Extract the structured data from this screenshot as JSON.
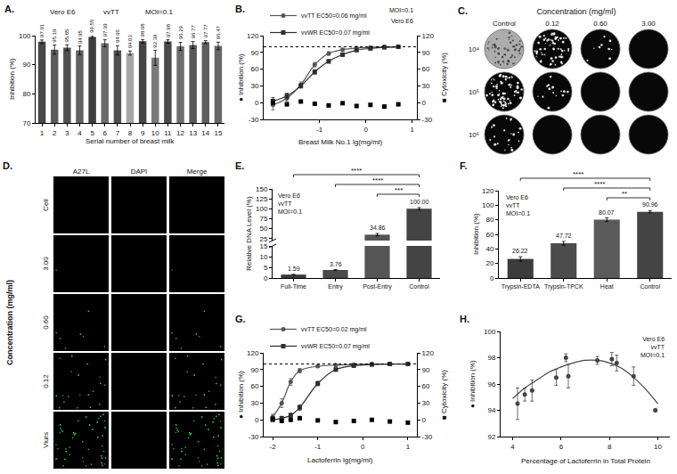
{
  "chart_data": [
    {
      "panel": "A.",
      "type": "bar",
      "annotations": [
        "Vero E6",
        "vvTT",
        "MOI=0.1"
      ],
      "categories": [
        1,
        2,
        3,
        4,
        5,
        6,
        7,
        8,
        9,
        10,
        11,
        12,
        13,
        14,
        15
      ],
      "values": [
        97.91,
        95.19,
        95.85,
        94.95,
        99.55,
        97.39,
        94.96,
        94.03,
        98.08,
        92.39,
        97.98,
        96.29,
        96.77,
        97.77,
        96.47
      ],
      "errors": [
        0.6,
        1.6,
        1.0,
        1.5,
        0.4,
        1.2,
        1.6,
        0.7,
        0.6,
        2.6,
        0.6,
        1.4,
        1.2,
        0.5,
        1.3
      ],
      "colors": [
        "#474747",
        "#5c5c5c",
        "#505050",
        "#626262",
        "#3d3d3d",
        "#6b6b6b",
        "#4f4f4f",
        "#a6a6a6",
        "#454545",
        "#7a7a7a",
        "#4a4a4a",
        "#6e6e6e",
        "#575757",
        "#5f5f5f",
        "#666666"
      ],
      "ylim": [
        70,
        100
      ],
      "yticks": [
        70,
        80,
        90,
        100
      ],
      "y_label": "Inhibition (%)",
      "x_label": "Serial number of breast milk",
      "data_labels": true
    },
    {
      "panel": "B.",
      "type": "line",
      "annotations": [
        "MOI=0.1",
        "Vero E6"
      ],
      "x_label": "Breast Milk No.1 lg(mg/ml)",
      "y_label": "● Inhibition (%)",
      "y2_label": "■ Cytoxicity (%)",
      "xlim": [
        -2.2,
        1.1
      ],
      "xticks": [
        -1,
        0,
        1
      ],
      "ylim": [
        -30,
        120
      ],
      "yticks": [
        -30,
        0,
        30,
        60,
        90,
        120
      ],
      "y2lim": [
        -30,
        120
      ],
      "y2ticks": [
        -30,
        0,
        30,
        60,
        90,
        120
      ],
      "reference_line": 100,
      "legend": "top",
      "series": [
        {
          "name": "vvTT EC50=0.06 mg/ml",
          "color": "#555555",
          "marker": "circle",
          "line_style": "spline",
          "x": [
            -2.0,
            -1.7,
            -1.4,
            -1.1,
            -0.8,
            -0.5,
            -0.2,
            0.1,
            0.4,
            0.7
          ],
          "values": [
            -4,
            8,
            32,
            68,
            88,
            95,
            98,
            99,
            100,
            100
          ],
          "errors": [
            9,
            6,
            5,
            4,
            3,
            2,
            1,
            1,
            1,
            1
          ]
        },
        {
          "name": "vvWR EC50=0.07 mg/ml",
          "color": "#2e2e2e",
          "marker": "square",
          "line_style": "spline",
          "x": [
            -2.0,
            -1.7,
            -1.4,
            -1.1,
            -0.8,
            -0.5,
            -0.2,
            0.1,
            0.4,
            0.7
          ],
          "values": [
            3,
            12,
            30,
            55,
            74,
            86,
            94,
            97,
            99,
            100
          ],
          "errors": [
            6,
            5,
            4,
            4,
            3,
            3,
            2,
            1,
            1,
            1
          ]
        },
        {
          "axis": "y2",
          "color": "#000000",
          "marker": "square",
          "line_style": "none",
          "x": [
            -2.0,
            -1.7,
            -1.4,
            -1.1,
            -0.8,
            -0.5,
            -0.2,
            0.1,
            0.4,
            0.7
          ],
          "values": [
            0,
            -3,
            2,
            -2,
            -5,
            -1,
            -6,
            -4,
            -7,
            -3
          ]
        }
      ]
    },
    {
      "panel": "E.",
      "type": "bar",
      "annotations": [
        "Vero E6",
        "vvTT",
        "MOI=0.1"
      ],
      "categories": [
        "Full-Time",
        "Entry",
        "Post-Entry",
        "Control"
      ],
      "values": [
        1.59,
        3.76,
        34.86,
        100
      ],
      "value_labels": [
        "1.59",
        "3.76",
        "34.86",
        "100.00"
      ],
      "errors": [
        0.1,
        0.15,
        3,
        3
      ],
      "colors": [
        "#3a3a3a",
        "#4a4a4a",
        "#555555",
        "#444444"
      ],
      "ylim": [
        [
          0,
          15
        ],
        [
          20,
          150
        ]
      ],
      "yticks": [
        [
          0,
          5,
          10,
          15
        ],
        [
          25,
          50,
          75,
          100,
          125,
          150
        ]
      ],
      "y_label": "Relative DNA Level (%)",
      "data_labels": true,
      "significance": [
        {
          "from": "Full-Time",
          "to": "Control",
          "label": "****"
        },
        {
          "from": "Entry",
          "to": "Control",
          "label": "****"
        },
        {
          "from": "Post-Entry",
          "to": "Control",
          "label": "***"
        }
      ]
    },
    {
      "panel": "F.",
      "type": "bar",
      "annotations": [
        "Vero E6",
        "vvTT",
        "MOI=0.1"
      ],
      "categories": [
        "Trypsin-EDTA",
        "Trypsin-TPCK",
        "Heat",
        "Control"
      ],
      "values": [
        26.22,
        47.72,
        80.07,
        90.96
      ],
      "errors": [
        3,
        2.5,
        2.5,
        1.5
      ],
      "colors": [
        "#3c3c3c",
        "#4c4c4c",
        "#5a5a5a",
        "#444444"
      ],
      "ylim": [
        0,
        120
      ],
      "yticks": [
        0,
        20,
        40,
        60,
        80,
        100,
        120
      ],
      "y_label": "Inhibition (%)",
      "data_labels": true,
      "significance": [
        {
          "from": "Trypsin-EDTA",
          "to": "Control",
          "label": "****"
        },
        {
          "from": "Trypsin-TPCK",
          "to": "Control",
          "label": "****"
        },
        {
          "from": "Heat",
          "to": "Control",
          "label": "**"
        }
      ]
    },
    {
      "panel": "G.",
      "type": "line",
      "x_label": "Lactoferrin lg(mg/ml)",
      "y_label": "● Inhibition (%)",
      "y2_label": "■ Cytoxicity (%)",
      "xlim": [
        -2.2,
        1.2
      ],
      "xticks": [
        -2,
        -1,
        0,
        1
      ],
      "ylim": [
        -30,
        120
      ],
      "yticks": [
        -30,
        0,
        30,
        60,
        90,
        120
      ],
      "y2lim": [
        -30,
        120
      ],
      "y2ticks": [
        -30,
        0,
        30,
        60,
        90,
        120
      ],
      "reference_line": 100,
      "legend": "top",
      "series": [
        {
          "name": "vvTT EC50=0.02 mg/ml",
          "color": "#555555",
          "marker": "circle",
          "line_style": "spline",
          "x": [
            -2.0,
            -1.8,
            -1.6,
            -1.4,
            -1.0,
            -0.6,
            -0.2,
            0.2,
            0.6,
            1.0
          ],
          "values": [
            5,
            30,
            68,
            88,
            96,
            98,
            99,
            100,
            100,
            100
          ],
          "errors": [
            5,
            8,
            6,
            4,
            2,
            1,
            1,
            1,
            1,
            1
          ]
        },
        {
          "name": "vvWR EC50=0.07 mg/ml",
          "color": "#2e2e2e",
          "marker": "square",
          "line_style": "spline",
          "x": [
            -2.0,
            -1.8,
            -1.6,
            -1.4,
            -1.0,
            -0.6,
            -0.2,
            0.2,
            0.6,
            1.0
          ],
          "values": [
            0,
            3,
            8,
            22,
            65,
            90,
            97,
            99,
            100,
            100
          ],
          "errors": [
            3,
            3,
            4,
            5,
            4,
            3,
            2,
            1,
            1,
            1
          ]
        },
        {
          "axis": "y2",
          "color": "#000000",
          "marker": "square",
          "line_style": "none",
          "x": [
            -2.0,
            -1.8,
            -1.6,
            -1.4,
            -1.0,
            -0.6,
            -0.2,
            0.2,
            0.6,
            1.0
          ],
          "values": [
            2,
            -2,
            0,
            3,
            -1,
            -4,
            -2,
            0,
            -3,
            -5
          ]
        }
      ]
    },
    {
      "panel": "H.",
      "type": "scatter",
      "annotations": [
        "Vero E6",
        "vvTT",
        "MOI=0.1"
      ],
      "x_label": "Percentage of Lactoferrin in Total Protein",
      "y_label": "● Inhibition (%)",
      "xlim": [
        3.5,
        10.5
      ],
      "xticks": [
        4,
        6,
        8,
        10
      ],
      "ylim": [
        92,
        100
      ],
      "yticks": [
        92,
        94,
        96,
        98,
        100
      ],
      "series": [
        {
          "type": "scatter",
          "color": "#444444",
          "marker": "circle",
          "x": [
            4.2,
            4.5,
            4.8,
            5.8,
            6.2,
            6.3,
            7.5,
            8.1,
            8.3,
            9.0,
            9.9
          ],
          "values": [
            94.5,
            95.2,
            95.5,
            96.5,
            98.0,
            96.6,
            97.8,
            97.9,
            97.6,
            96.6,
            94.0
          ],
          "errors": [
            1.2,
            0.5,
            0.8,
            0.6,
            0.3,
            0.9,
            0.3,
            0.5,
            0.6,
            0.7,
            0.1
          ]
        },
        {
          "type": "line",
          "color": "#444444",
          "line_style": "spline",
          "x": [
            4.0,
            4.5,
            5.0,
            5.5,
            6.0,
            6.5,
            7.0,
            7.5,
            8.0,
            8.5,
            9.0,
            9.5,
            10.0
          ],
          "values": [
            94.9,
            95.7,
            96.3,
            96.9,
            97.3,
            97.6,
            97.8,
            97.8,
            97.6,
            97.2,
            96.5,
            95.6,
            94.5
          ]
        }
      ]
    }
  ],
  "plaque_assay": {
    "panel": "C.",
    "title": "Concentration (mg/ml)",
    "columns": [
      "Control",
      "0.12",
      "0.60",
      "3.00"
    ],
    "rows": [
      "10⁴",
      "10⁵",
      "10⁶"
    ]
  },
  "immunofluorescence": {
    "panel": "D.",
    "side_label": "Concentration (mg/ml)",
    "columns": [
      "A27L",
      "DAPI",
      "Merge"
    ],
    "rows": [
      "Cell",
      "3.00",
      "0.60",
      "0.12",
      "Viurs"
    ]
  }
}
